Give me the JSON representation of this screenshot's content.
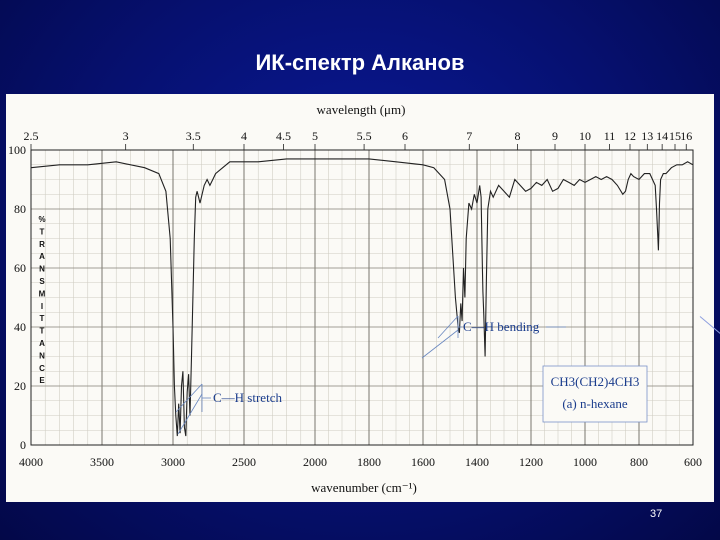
{
  "slide": {
    "title": "ИК-спектр Алканов",
    "page_number": "37"
  },
  "chart_data": {
    "type": "line",
    "top_axis_label": "wavelength (μm)",
    "top_ticks": [
      "2.5",
      "3",
      "3.5",
      "4",
      "4.5",
      "5",
      "5.5",
      "6",
      "7",
      "8",
      "9",
      "10",
      "11",
      "12",
      "13",
      "14",
      "15",
      "16"
    ],
    "xlabel": "wavenumber (cm⁻¹)",
    "x_ticks": [
      4000,
      3500,
      3000,
      2500,
      2000,
      1800,
      1600,
      1400,
      1200,
      1000,
      800,
      600
    ],
    "xlim": [
      4000,
      600
    ],
    "ylabel_letters": [
      "%",
      "T",
      "R",
      "A",
      "N",
      "S",
      "M",
      "I",
      "T",
      "T",
      "A",
      "N",
      "C",
      "E"
    ],
    "y_ticks": [
      0,
      20,
      40,
      60,
      80,
      100
    ],
    "ylim": [
      0,
      100
    ],
    "grid": true,
    "series": [
      {
        "x": [
          4000,
          3800,
          3600,
          3400,
          3200,
          3100,
          3050,
          3020,
          3000,
          2990,
          2980,
          2970,
          2960,
          2950,
          2940,
          2930,
          2920,
          2910,
          2900,
          2890,
          2880,
          2870,
          2860,
          2850,
          2840,
          2830,
          2820,
          2810,
          2800,
          2780,
          2760,
          2740,
          2720,
          2700,
          2650,
          2600,
          2400,
          2200,
          2000,
          1900,
          1800,
          1700,
          1600,
          1560,
          1540,
          1520,
          1500,
          1490,
          1480,
          1470,
          1465,
          1460,
          1455,
          1450,
          1445,
          1440,
          1430,
          1420,
          1410,
          1400,
          1390,
          1385,
          1380,
          1378,
          1375,
          1370,
          1365,
          1360,
          1350,
          1340,
          1320,
          1300,
          1280,
          1260,
          1240,
          1220,
          1200,
          1180,
          1160,
          1140,
          1120,
          1100,
          1080,
          1060,
          1040,
          1020,
          1000,
          980,
          960,
          940,
          920,
          900,
          880,
          860,
          850,
          840,
          830,
          820,
          800,
          780,
          760,
          740,
          735,
          730,
          728,
          726,
          724,
          720,
          710,
          700,
          680,
          660,
          640,
          620,
          600
        ],
        "y": [
          94,
          95,
          95,
          96,
          94,
          92,
          86,
          70,
          40,
          20,
          10,
          3,
          14,
          4,
          20,
          25,
          6,
          3,
          18,
          24,
          10,
          30,
          50,
          70,
          84,
          86,
          84,
          82,
          84,
          88,
          90,
          88,
          90,
          92,
          94,
          96,
          96,
          97,
          97,
          97,
          97,
          96,
          95,
          94,
          92,
          90,
          80,
          65,
          50,
          40,
          38,
          48,
          42,
          60,
          50,
          70,
          82,
          80,
          85,
          82,
          88,
          84,
          60,
          52,
          44,
          30,
          56,
          80,
          86,
          84,
          88,
          86,
          84,
          90,
          88,
          86,
          87,
          89,
          88,
          90,
          86,
          87,
          90,
          89,
          88,
          90,
          89,
          90,
          91,
          90,
          91,
          90,
          88,
          85,
          86,
          90,
          92,
          91,
          90,
          92,
          92,
          88,
          80,
          70,
          66,
          74,
          82,
          90,
          92,
          92,
          94,
          95,
          95,
          96,
          95
        ],
        "color": "#222222"
      }
    ],
    "annotations": {
      "stretch_label": "C—H stretch",
      "bending_label": "C—H bending",
      "formula": "CH3(CH2)4CH3",
      "compound": "(a) n-hexane"
    }
  }
}
